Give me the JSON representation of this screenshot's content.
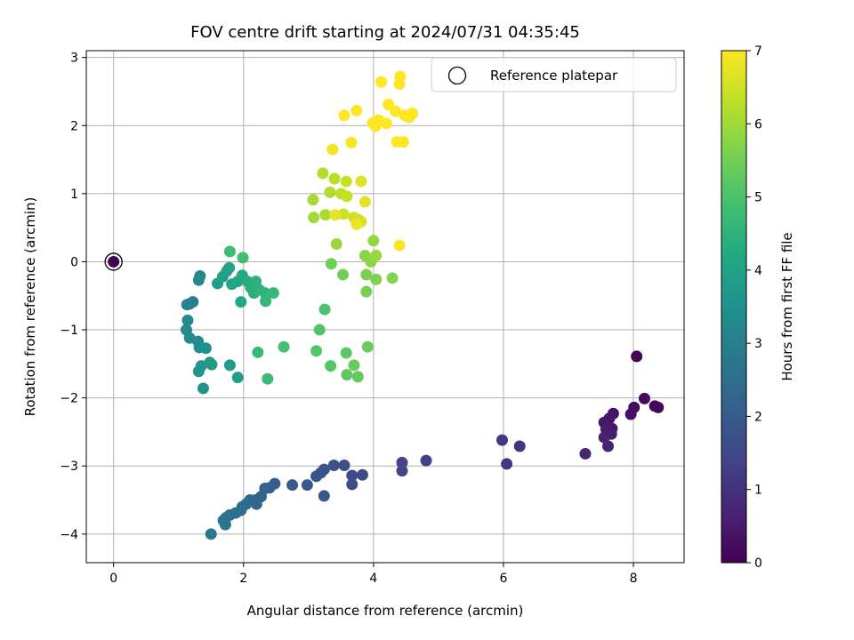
{
  "chart_data": {
    "type": "scatter",
    "title": "FOV centre drift starting at 2024/07/31 04:35:45",
    "xlabel": "Angular distance from reference (arcmin)",
    "ylabel": "Rotation from reference (arcmin)",
    "xlim": [
      -0.42,
      8.78
    ],
    "ylim": [
      -4.42,
      3.1
    ],
    "xticks": [
      0,
      2,
      4,
      6,
      8
    ],
    "yticks": [
      -4,
      -3,
      -2,
      -1,
      0,
      1,
      2,
      3
    ],
    "grid": true,
    "legend": {
      "placement": "upper-right",
      "entries": [
        "Reference platepar"
      ]
    },
    "colorbar": {
      "label": "Hours from first FF file",
      "range": [
        0,
        7
      ],
      "ticks": [
        0,
        1,
        2,
        3,
        4,
        5,
        6,
        7
      ],
      "colormap": "viridis"
    },
    "reference": {
      "x": 0,
      "y": 0
    },
    "points": [
      [
        8.05,
        -1.39,
        0.05
      ],
      [
        8.33,
        -2.12,
        0.1
      ],
      [
        8.38,
        -2.14,
        0.15
      ],
      [
        8.17,
        -2.01,
        0.2
      ],
      [
        8.01,
        -2.14,
        0.25
      ],
      [
        7.96,
        -2.24,
        0.3
      ],
      [
        7.69,
        -2.23,
        0.35
      ],
      [
        7.63,
        -2.3,
        0.4
      ],
      [
        7.55,
        -2.36,
        0.45
      ],
      [
        7.67,
        -2.45,
        0.5
      ],
      [
        7.58,
        -2.46,
        0.55
      ],
      [
        7.66,
        -2.53,
        0.6
      ],
      [
        7.55,
        -2.58,
        0.65
      ],
      [
        7.61,
        -2.71,
        0.7
      ],
      [
        7.26,
        -2.82,
        0.75
      ],
      [
        6.25,
        -2.71,
        1.05
      ],
      [
        6.05,
        -2.97,
        1.1
      ],
      [
        5.98,
        -2.62,
        1.15
      ],
      [
        4.81,
        -2.92,
        1.35
      ],
      [
        4.44,
        -2.95,
        1.4
      ],
      [
        4.44,
        -3.07,
        1.45
      ],
      [
        3.83,
        -3.13,
        1.5
      ],
      [
        3.67,
        -3.14,
        1.55
      ],
      [
        3.67,
        -3.27,
        1.6
      ],
      [
        3.55,
        -2.99,
        1.65
      ],
      [
        3.39,
        -2.99,
        1.7
      ],
      [
        3.24,
        -3.05,
        1.75
      ],
      [
        3.19,
        -3.1,
        1.8
      ],
      [
        3.12,
        -3.15,
        1.85
      ],
      [
        3.24,
        -3.44,
        1.9
      ],
      [
        2.98,
        -3.28,
        1.95
      ],
      [
        2.75,
        -3.28,
        2.0
      ],
      [
        2.48,
        -3.26,
        2.05
      ],
      [
        2.4,
        -3.32,
        2.1
      ],
      [
        2.33,
        -3.33,
        2.15
      ],
      [
        2.27,
        -3.45,
        2.2
      ],
      [
        2.18,
        -3.5,
        2.25
      ],
      [
        2.2,
        -3.56,
        2.3
      ],
      [
        2.1,
        -3.5,
        2.35
      ],
      [
        2.04,
        -3.56,
        2.4
      ],
      [
        1.98,
        -3.6,
        2.45
      ],
      [
        1.96,
        -3.65,
        2.5
      ],
      [
        1.88,
        -3.69,
        2.55
      ],
      [
        1.79,
        -3.72,
        2.6
      ],
      [
        1.73,
        -3.76,
        2.65
      ],
      [
        1.69,
        -3.8,
        2.7
      ],
      [
        1.72,
        -3.86,
        2.75
      ],
      [
        1.5,
        -4.0,
        2.8
      ],
      [
        1.22,
        -0.59,
        3.0
      ],
      [
        1.17,
        -0.62,
        3.05
      ],
      [
        1.13,
        -0.63,
        3.1
      ],
      [
        1.33,
        -0.21,
        3.15
      ],
      [
        1.31,
        -0.27,
        3.2
      ],
      [
        1.14,
        -0.86,
        3.25
      ],
      [
        1.12,
        -1.0,
        3.3
      ],
      [
        1.17,
        -1.12,
        3.35
      ],
      [
        1.3,
        -1.17,
        3.4
      ],
      [
        1.32,
        -1.26,
        3.45
      ],
      [
        1.42,
        -1.27,
        3.5
      ],
      [
        1.38,
        -1.86,
        3.55
      ],
      [
        1.31,
        -1.61,
        3.6
      ],
      [
        1.35,
        -1.53,
        3.65
      ],
      [
        1.48,
        -1.48,
        3.7
      ],
      [
        1.51,
        -1.51,
        3.75
      ],
      [
        1.79,
        -1.52,
        3.8
      ],
      [
        1.91,
        -1.7,
        3.85
      ],
      [
        1.6,
        -0.32,
        3.9
      ],
      [
        1.68,
        -0.22,
        3.95
      ],
      [
        1.74,
        -0.14,
        4.0
      ],
      [
        1.78,
        -0.09,
        4.05
      ],
      [
        1.82,
        -0.33,
        4.1
      ],
      [
        1.91,
        -0.29,
        4.15
      ],
      [
        1.96,
        -0.59,
        4.2
      ],
      [
        1.98,
        -0.2,
        4.25
      ],
      [
        2.06,
        -0.29,
        4.3
      ],
      [
        2.11,
        -0.38,
        4.35
      ],
      [
        2.16,
        -0.46,
        4.4
      ],
      [
        2.19,
        -0.29,
        4.45
      ],
      [
        2.24,
        -0.41,
        4.5
      ],
      [
        2.33,
        -0.46,
        4.55
      ],
      [
        2.34,
        -0.58,
        4.6
      ],
      [
        2.46,
        -0.46,
        4.65
      ],
      [
        2.22,
        -1.33,
        4.7
      ],
      [
        2.37,
        -1.72,
        4.75
      ],
      [
        1.79,
        0.15,
        4.8
      ],
      [
        1.99,
        0.06,
        4.85
      ],
      [
        2.62,
        -1.25,
        4.9
      ],
      [
        3.25,
        -0.7,
        5.0
      ],
      [
        3.17,
        -1.0,
        5.05
      ],
      [
        3.12,
        -1.31,
        5.1
      ],
      [
        3.34,
        -1.53,
        5.15
      ],
      [
        3.58,
        -1.34,
        5.2
      ],
      [
        3.59,
        -1.66,
        5.25
      ],
      [
        3.76,
        -1.69,
        5.3
      ],
      [
        3.7,
        -1.52,
        5.35
      ],
      [
        3.91,
        -1.25,
        5.4
      ],
      [
        3.35,
        -0.03,
        5.45
      ],
      [
        3.53,
        -0.19,
        5.5
      ],
      [
        3.89,
        -0.44,
        5.55
      ],
      [
        3.89,
        -0.19,
        5.6
      ],
      [
        4.04,
        -0.26,
        5.65
      ],
      [
        4.29,
        -0.24,
        5.7
      ],
      [
        3.87,
        0.09,
        5.75
      ],
      [
        3.96,
        0.0,
        5.8
      ],
      [
        4.0,
        0.31,
        5.85
      ],
      [
        4.04,
        0.09,
        5.9
      ],
      [
        3.43,
        0.26,
        5.95
      ],
      [
        3.08,
        0.65,
        6.0
      ],
      [
        3.07,
        0.91,
        6.05
      ],
      [
        3.26,
        0.69,
        6.1
      ],
      [
        3.33,
        1.02,
        6.15
      ],
      [
        3.22,
        1.3,
        6.2
      ],
      [
        3.4,
        1.22,
        6.25
      ],
      [
        3.5,
        1.0,
        6.3
      ],
      [
        3.59,
        0.96,
        6.35
      ],
      [
        3.58,
        1.18,
        6.4
      ],
      [
        3.54,
        0.7,
        6.45
      ],
      [
        3.7,
        0.65,
        6.5
      ],
      [
        3.77,
        0.62,
        6.55
      ],
      [
        3.81,
        0.59,
        6.6
      ],
      [
        3.81,
        1.18,
        6.65
      ],
      [
        3.87,
        0.88,
        6.7
      ],
      [
        3.41,
        0.69,
        6.75
      ],
      [
        3.74,
        0.55,
        6.8
      ],
      [
        3.37,
        1.65,
        6.85
      ],
      [
        3.66,
        1.75,
        6.9
      ],
      [
        4.4,
        0.24,
        6.95
      ],
      [
        4.41,
        2.72,
        7.0
      ],
      [
        4.12,
        2.64,
        7.0
      ],
      [
        4.4,
        2.61,
        7.0
      ],
      [
        4.23,
        2.31,
        7.0
      ],
      [
        4.34,
        2.21,
        7.0
      ],
      [
        4.48,
        2.15,
        7.0
      ],
      [
        4.55,
        2.12,
        7.0
      ],
      [
        4.6,
        2.18,
        7.0
      ],
      [
        3.55,
        2.15,
        7.0
      ],
      [
        3.74,
        2.22,
        7.0
      ],
      [
        4.08,
        2.08,
        7.0
      ],
      [
        4.03,
        1.99,
        7.0
      ],
      [
        3.99,
        2.04,
        7.0
      ],
      [
        4.2,
        2.03,
        7.0
      ],
      [
        4.36,
        1.76,
        7.0
      ],
      [
        4.46,
        1.76,
        7.0
      ]
    ]
  }
}
